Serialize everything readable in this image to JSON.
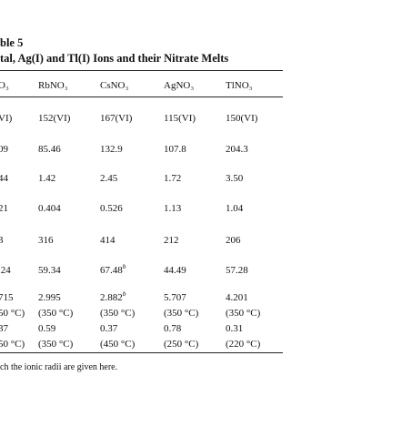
{
  "header": {
    "title": "ble 5",
    "subtitle": "tal, Ag(I) and Tl(I) Ions and their Nitrate Melts"
  },
  "table": {
    "columns": [
      "O₃",
      "RbNO₃",
      "CsNO₃",
      "AgNO₃",
      "TlNO₃"
    ],
    "rows": [
      [
        "VI)",
        "152(VI)",
        "167(VI)",
        "115(VI)",
        "150(VI)"
      ],
      [
        "09",
        "85.46",
        "132.9",
        "107.8",
        "204.3"
      ],
      [
        "44",
        "1.42",
        "2.45",
        "1.72",
        "3.50"
      ],
      [
        "21",
        "0.404",
        "0.526",
        "1.13",
        "1.04"
      ],
      [
        "3",
        "316",
        "414",
        "212",
        "206"
      ],
      [
        ".24",
        "59.34",
        {
          "text": "67.48",
          "sup": "b"
        },
        "44.49",
        "57.28"
      ],
      [
        "715",
        "2.995",
        {
          "text": "2.882",
          "sup": "b"
        },
        "5.707",
        "4.201"
      ],
      [
        "50 °C)",
        "(350 °C)",
        "(350 °C)",
        "(350 °C)",
        "(350 °C)"
      ],
      [
        "37",
        "0.59",
        "0.37",
        "0.78",
        "0.31"
      ],
      [
        "50 °C)",
        "(350 °C)",
        "(450 °C)",
        "(250 °C)",
        "(220 °C)"
      ]
    ],
    "footnote": "ch the ionic radii are given here."
  }
}
